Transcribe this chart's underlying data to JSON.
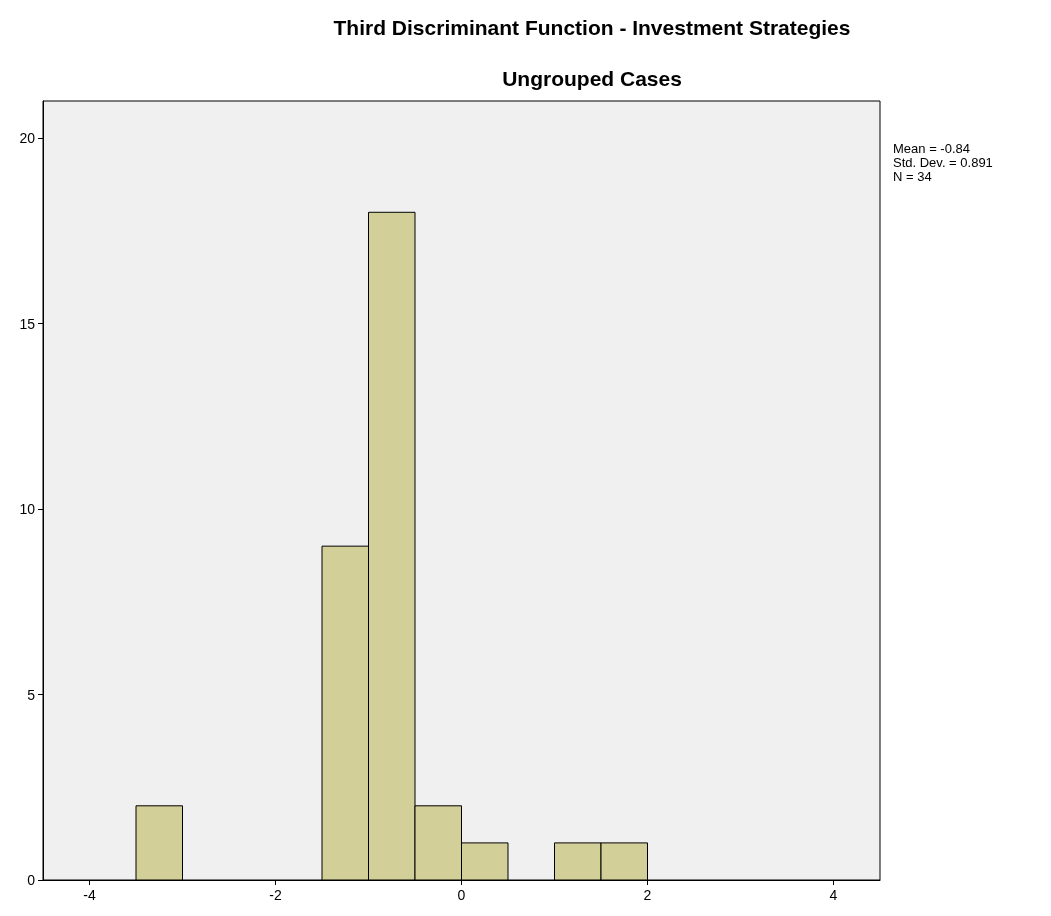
{
  "chart_data": {
    "type": "histogram",
    "title": "Third Discriminant Function - Investment Strategies",
    "subtitle": "Ungrouped Cases",
    "bins": [
      -3.5,
      -3,
      -2.5,
      -2,
      -1.5,
      -1,
      -0.5,
      0,
      0.5,
      1,
      1.5,
      2
    ],
    "values": [
      2,
      0,
      0,
      0,
      9,
      18,
      2,
      1,
      0,
      1,
      1
    ],
    "color": "#d3cf98",
    "xlim": [
      -4.5,
      4.5
    ],
    "xticks": [
      -4,
      -2,
      0,
      2,
      4
    ],
    "ylim": [
      0,
      21
    ],
    "yticks": [
      0,
      5,
      10,
      15,
      20
    ],
    "grid": false,
    "annotations": [
      "Mean = -0.84",
      "Std. Dev. = 0.891",
      "N = 34"
    ]
  }
}
